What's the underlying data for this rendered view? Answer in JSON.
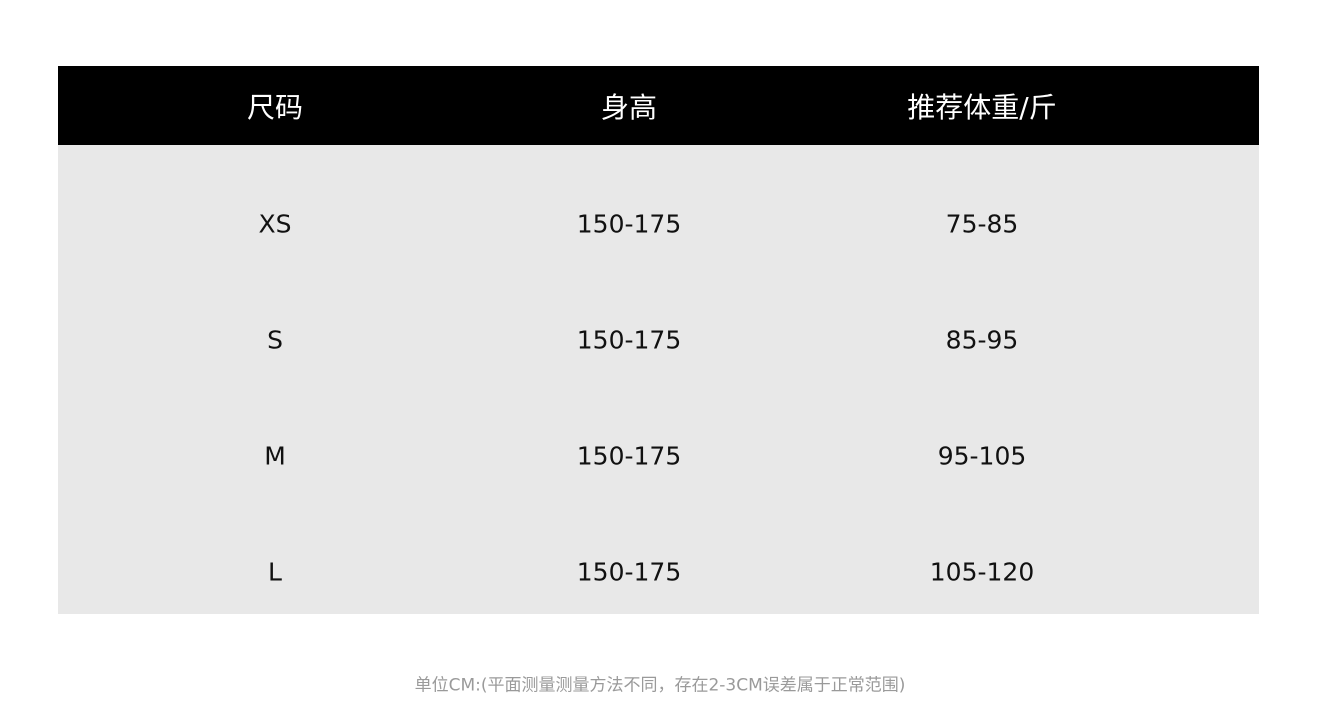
{
  "table": {
    "headers": [
      "尺码",
      "身高",
      "推荐体重/斤"
    ],
    "rows": [
      [
        "XS",
        "150-175",
        "75-85"
      ],
      [
        "S",
        "150-175",
        "85-95"
      ],
      [
        "M",
        "150-175",
        "95-105"
      ],
      [
        "L",
        "150-175",
        "105-120"
      ]
    ]
  },
  "note": "单位CM:(平面测量测量方法不同，存在2-3CM误差属于正常范围)",
  "colors": {
    "header_bg": "#000000",
    "body_bg": "#e8e8e8",
    "note_text": "#9a9a9a"
  }
}
